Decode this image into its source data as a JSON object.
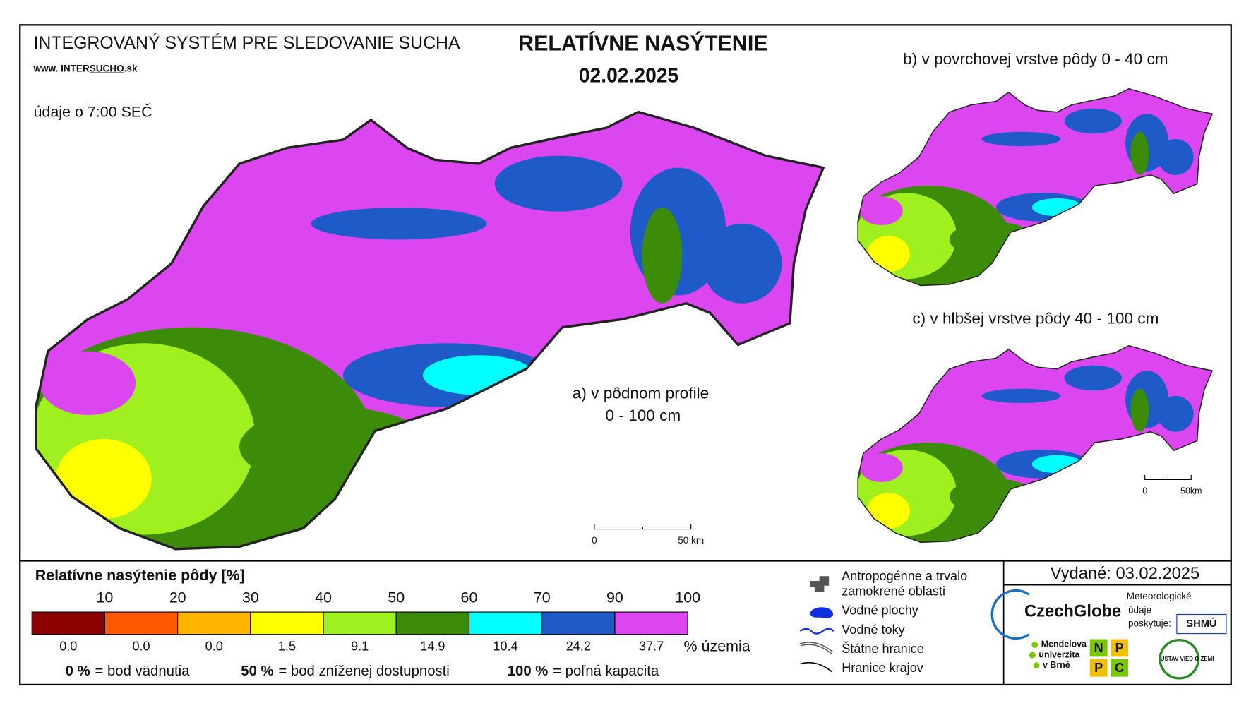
{
  "header": {
    "system": "INTEGROVANÝ SYSTÉM PRE SLEDOVANIE SUCHA",
    "url_prefix": "www. INTER",
    "url_highlight": "SUCHO",
    "url_suffix": ".sk",
    "time": "údaje o 7:00 SEČ",
    "title": "RELATÍVNE NASÝTENIE",
    "date": "02.02.2025"
  },
  "maps": {
    "a_line1": "a) v pôdnom profile",
    "a_line2": "0 - 100 cm",
    "b": "b) v povrchovej vrstve pôdy 0 - 40 cm",
    "c": "c) v hlbšej vrstve pôdy 40 - 100 cm",
    "scale_a": [
      "0",
      "50 km"
    ],
    "scale_small": [
      "0",
      "50km"
    ]
  },
  "legend": {
    "title": "Relatívne nasýtenie pôdy [%]",
    "breaks": [
      "10",
      "20",
      "30",
      "40",
      "50",
      "60",
      "70",
      "90",
      "100"
    ],
    "classes": [
      {
        "color": "#8b0000",
        "share": "0.0"
      },
      {
        "color": "#ff5a00",
        "share": "0.0"
      },
      {
        "color": "#ffb400",
        "share": "0.0"
      },
      {
        "color": "#ffff00",
        "share": "1.5"
      },
      {
        "color": "#a0f020",
        "share": "9.1"
      },
      {
        "color": "#3c8c0a",
        "share": "14.9"
      },
      {
        "color": "#00ffff",
        "share": "10.4"
      },
      {
        "color": "#1e5ac8",
        "share": "24.2"
      },
      {
        "color": "#dc46f0",
        "share": "37.7"
      }
    ],
    "unit": "% územia",
    "notes": [
      {
        "bold": "0 %",
        "text": "= bod vädnutia"
      },
      {
        "bold": "50 %",
        "text": "= bod zníženej dostupnosti"
      },
      {
        "bold": "100 %",
        "text": "= poľná kapacita"
      }
    ]
  },
  "symbols": [
    [
      "Antropogénne a trvalo",
      "zamokrené oblasti"
    ],
    [
      "Vodné plochy"
    ],
    [
      "Vodné toky"
    ],
    [
      "Štátne hranice"
    ],
    [
      "Hranice krajov"
    ]
  ],
  "issued": "Vydané: 03.02.2025",
  "logos": {
    "czechglobe": "CzechGlobe",
    "meteo": [
      "Meteorologické",
      "údaje",
      "poskytuje:"
    ],
    "shmu": "SHMÚ",
    "mendel": [
      "Mendelova",
      "univerzita",
      "v Brně"
    ],
    "nppc": [
      "N",
      "P",
      "P",
      "C"
    ],
    "uvz": "ÚSTAV VIED O ZEMI"
  }
}
